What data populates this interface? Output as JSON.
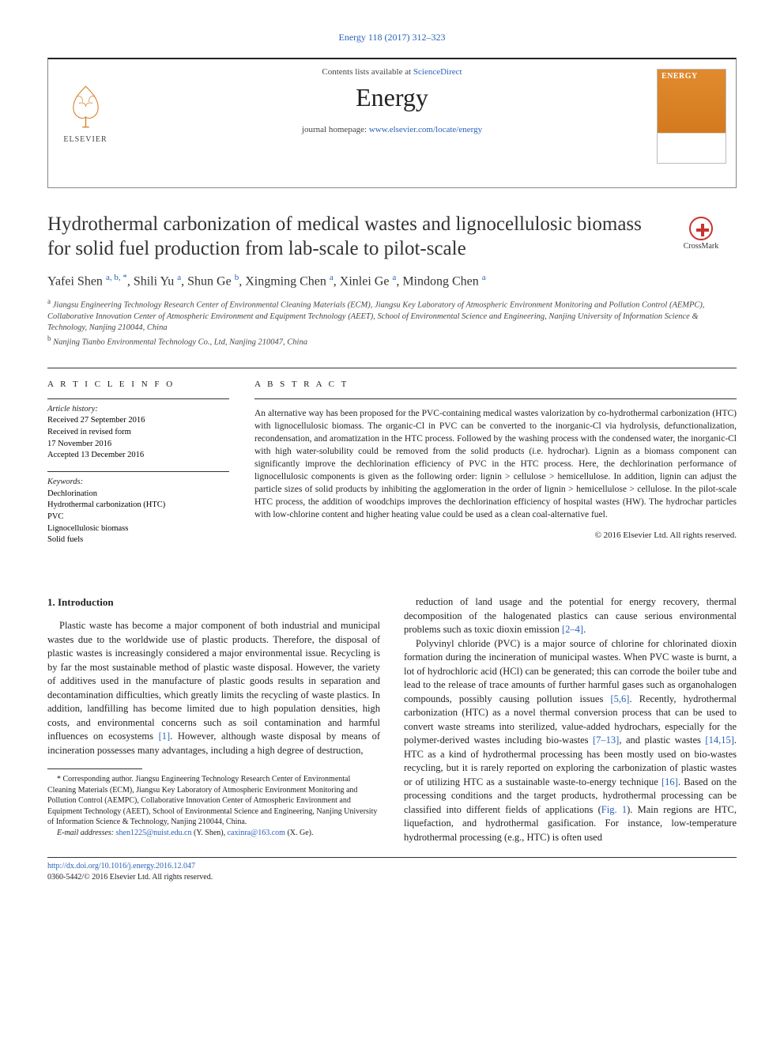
{
  "citation": "Energy 118 (2017) 312–323",
  "header": {
    "contents_line_prefix": "Contents lists available at ",
    "contents_line_link": "ScienceDirect",
    "journal": "Energy",
    "homepage_prefix": "journal homepage: ",
    "homepage_url": "www.elsevier.com/locate/energy",
    "publisher_label": "ELSEVIER",
    "cover_title": "ENERGY"
  },
  "title": "Hydrothermal carbonization of medical wastes and lignocellulosic biomass for solid fuel production from lab-scale to pilot-scale",
  "crossmark": "CrossMark",
  "authors_html": "Yafei Shen <span class='sup'>a, b, *</span>, Shili Yu <span class='sup'>a</span>, Shun Ge <span class='sup'>b</span>, Xingming Chen <span class='sup'>a</span>, Xinlei Ge <span class='sup'>a</span>, Mindong Chen <span class='sup'>a</span>",
  "affiliations": {
    "a": "Jiangsu Engineering Technology Research Center of Environmental Cleaning Materials (ECM), Jiangsu Key Laboratory of Atmospheric Environment Monitoring and Pollution Control (AEMPC), Collaborative Innovation Center of Atmospheric Environment and Equipment Technology (AEET), School of Environmental Science and Engineering, Nanjing University of Information Science & Technology, Nanjing 210044, China",
    "b": "Nanjing Tianbo Environmental Technology Co., Ltd, Nanjing 210047, China"
  },
  "info": {
    "heading": "A R T I C L E  I N F O",
    "history_label": "Article history:",
    "received": "Received 27 September 2016",
    "revised": "Received in revised form\n17 November 2016",
    "accepted": "Accepted 13 December 2016",
    "keywords_label": "Keywords:",
    "keywords": [
      "Dechlorination",
      "Hydrothermal carbonization (HTC)",
      "PVC",
      "Lignocellulosic biomass",
      "Solid fuels"
    ]
  },
  "abstract": {
    "heading": "A B S T R A C T",
    "text": "An alternative way has been proposed for the PVC-containing medical wastes valorization by co-hydrothermal carbonization (HTC) with lignocellulosic biomass. The organic-Cl in PVC can be converted to the inorganic-Cl via hydrolysis, defunctionalization, recondensation, and aromatization in the HTC process. Followed by the washing process with the condensed water, the inorganic-Cl with high water-solubility could be removed from the solid products (i.e. hydrochar). Lignin as a biomass component can significantly improve the dechlorination efficiency of PVC in the HTC process. Here, the dechlorination performance of lignocellulosic components is given as the following order: lignin > cellulose > hemicellulose. In addition, lignin can adjust the particle sizes of solid products by inhibiting the agglomeration in the order of lignin > hemicellulose > cellulose. In the pilot-scale HTC process, the addition of woodchips improves the dechlorination efficiency of hospital wastes (HW). The hydrochar particles with low-chlorine content and higher heating value could be used as a clean coal-alternative fuel.",
    "copyright": "© 2016 Elsevier Ltd. All rights reserved."
  },
  "section": {
    "heading": "1. Introduction",
    "p1": "Plastic waste has become a major component of both industrial and municipal wastes due to the worldwide use of plastic products. Therefore, the disposal of plastic wastes is increasingly considered a major environmental issue. Recycling is by far the most sustainable method of plastic waste disposal. However, the variety of additives used in the manufacture of plastic goods results in separation and decontamination difficulties, which greatly limits the recycling of waste plastics. In addition, landfilling has become limited due to high population densities, high costs, and environmental concerns such as soil contamination and harmful influences on ecosystems ",
    "p1_ref": "[1]",
    "p1b": ". However, although waste disposal by means of incineration possesses many advantages, including a high degree of destruction,",
    "p2a": "reduction of land usage and the potential for energy recovery, thermal decomposition of the halogenated plastics can cause serious environmental problems such as toxic dioxin emission ",
    "p2a_ref": "[2–4]",
    "p2a_end": ".",
    "p2": "Polyvinyl chloride (PVC) is a major source of chlorine for chlorinated dioxin formation during the incineration of municipal wastes. When PVC waste is burnt, a lot of hydrochloric acid (HCl) can be generated; this can corrode the boiler tube and lead to the release of trace amounts of further harmful gases such as organohalogen compounds, possibly causing pollution issues ",
    "p2_ref1": "[5,6]",
    "p2b": ". Recently, hydrothermal carbonization (HTC) as a novel thermal conversion process that can be used to convert waste streams into sterilized, value-added hydrochars, especially for the polymer-derived wastes including bio-wastes ",
    "p2_ref2": "[7–13]",
    "p2c": ", and plastic wastes ",
    "p2_ref3": "[14,15]",
    "p2d": ". HTC as a kind of hydrothermal processing has been mostly used on bio-wastes recycling, but it is rarely reported on exploring the carbonization of plastic wastes or of utilizing HTC as a sustainable waste-to-energy technique ",
    "p2_ref4": "[16]",
    "p2e": ". Based on the processing conditions and the target products, hydrothermal processing can be classified into different fields of applications (",
    "p2_ref5": "Fig. 1",
    "p2f": "). Main regions are HTC, liquefaction, and hydrothermal gasification. For instance, low-temperature hydrothermal processing (e.g., HTC) is often used"
  },
  "footnote": {
    "corr": "* Corresponding author. Jiangsu Engineering Technology Research Center of Environmental Cleaning Materials (ECM), Jiangsu Key Laboratory of Atmospheric Environment Monitoring and Pollution Control (AEMPC), Collaborative Innovation Center of Atmospheric Environment and Equipment Technology (AEET), School of Environmental Science and Engineering, Nanjing University of Information Science & Technology, Nanjing 210044, China.",
    "email_label": "E-mail addresses: ",
    "email1": "shen1225@nuist.edu.cn",
    "email1_who": " (Y. Shen), ",
    "email2": "caxinra@163.com",
    "email2_who": " (X. Ge)."
  },
  "footer": {
    "doi": "http://dx.doi.org/10.1016/j.energy.2016.12.047",
    "issn": "0360-5442/© 2016 Elsevier Ltd. All rights reserved."
  },
  "colors": {
    "link": "#2962b8",
    "cover": "#e08a2e",
    "crossmark": "#c9332e"
  }
}
